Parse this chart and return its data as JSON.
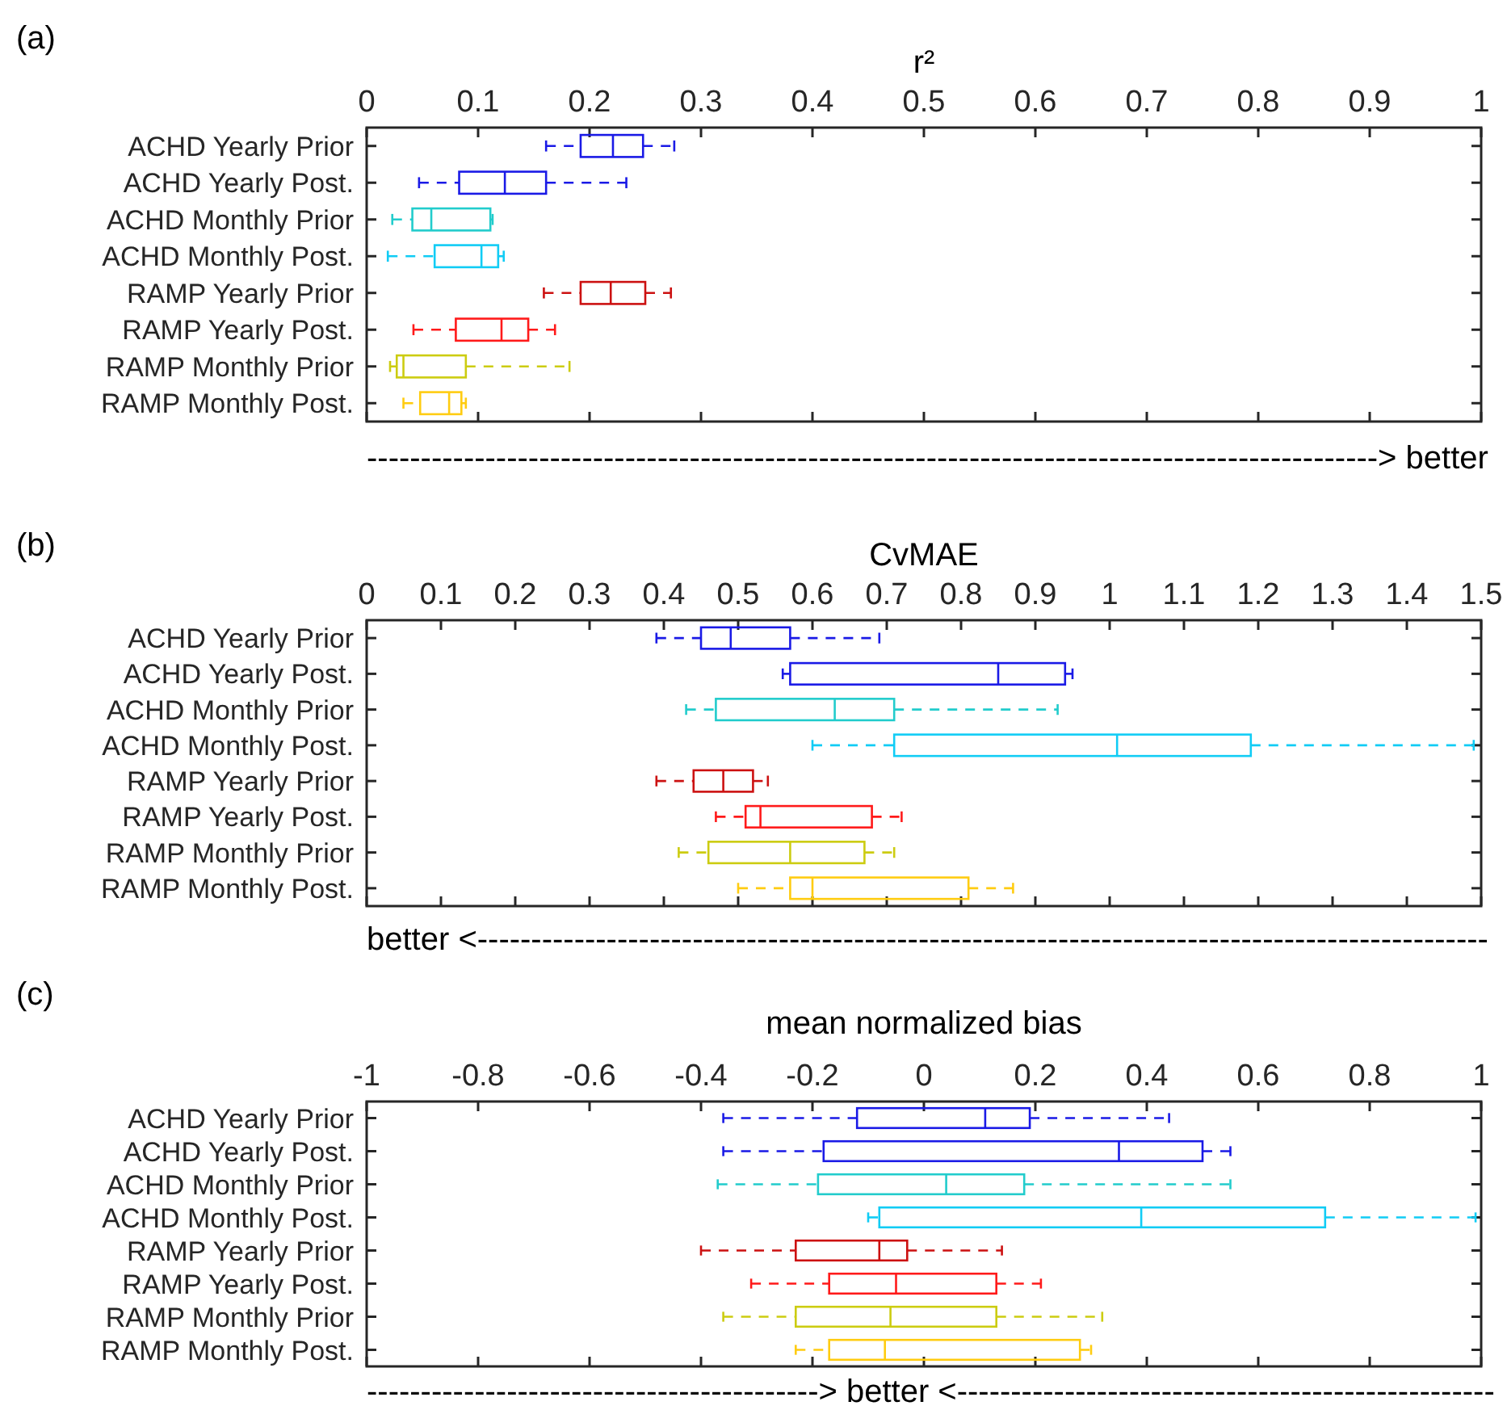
{
  "chart_data": [
    {
      "type": "box",
      "title": "r²",
      "annotations": [
        "(a)",
        "----------------------------------------------------------------------------------------------> better"
      ],
      "categories": [
        "ACHD Yearly Prior",
        "ACHD Yearly Post.",
        "ACHD Monthly Prior",
        "ACHD Monthly Post.",
        "RAMP Yearly Prior",
        "RAMP Yearly Post.",
        "RAMP Monthly Prior",
        "RAMP Monthly Post."
      ],
      "orientation": "horizontal",
      "xlim": [
        0,
        1
      ],
      "xticks": [
        0,
        0.1,
        0.2,
        0.3,
        0.4,
        0.5,
        0.6,
        0.7,
        0.8,
        0.9,
        1
      ],
      "colors": [
        "#1a1ae6",
        "#1a1ae6",
        "#22cccc",
        "#11ccf5",
        "#cc1111",
        "#ff1a1a",
        "#cccc11",
        "#ffcc11"
      ],
      "boxes": [
        {
          "low": 0.161,
          "q1": 0.192,
          "median": 0.221,
          "q3": 0.248,
          "high": 0.276
        },
        {
          "low": 0.047,
          "q1": 0.083,
          "median": 0.124,
          "q3": 0.161,
          "high": 0.233
        },
        {
          "low": 0.023,
          "q1": 0.041,
          "median": 0.058,
          "q3": 0.111,
          "high": 0.113
        },
        {
          "low": 0.019,
          "q1": 0.061,
          "median": 0.103,
          "q3": 0.118,
          "high": 0.123
        },
        {
          "low": 0.159,
          "q1": 0.192,
          "median": 0.219,
          "q3": 0.25,
          "high": 0.273
        },
        {
          "low": 0.042,
          "q1": 0.08,
          "median": 0.121,
          "q3": 0.145,
          "high": 0.169
        },
        {
          "low": 0.021,
          "q1": 0.027,
          "median": 0.033,
          "q3": 0.089,
          "high": 0.182
        },
        {
          "low": 0.033,
          "q1": 0.048,
          "median": 0.074,
          "q3": 0.085,
          "high": 0.089
        }
      ]
    },
    {
      "type": "box",
      "title": "CvMAE",
      "annotations": [
        "(b)",
        "better <----------------------------------------------------------------------------------------------"
      ],
      "categories": [
        "ACHD Yearly Prior",
        "ACHD Yearly Post.",
        "ACHD Monthly Prior",
        "ACHD Monthly Post.",
        "RAMP Yearly Prior",
        "RAMP Yearly Post.",
        "RAMP Monthly Prior",
        "RAMP Monthly Post."
      ],
      "orientation": "horizontal",
      "xlim": [
        0,
        1.5
      ],
      "xticks": [
        0,
        0.1,
        0.2,
        0.3,
        0.4,
        0.5,
        0.6,
        0.7,
        0.8,
        0.9,
        1,
        1.1,
        1.2,
        1.3,
        1.4,
        1.5
      ],
      "colors": [
        "#1a1ae6",
        "#1a1ae6",
        "#22cccc",
        "#11ccf5",
        "#cc1111",
        "#ff1a1a",
        "#cccc11",
        "#ffcc11"
      ],
      "boxes": [
        {
          "low": 0.39,
          "q1": 0.45,
          "median": 0.49,
          "q3": 0.57,
          "high": 0.69
        },
        {
          "low": 0.56,
          "q1": 0.57,
          "median": 0.85,
          "q3": 0.94,
          "high": 0.95
        },
        {
          "low": 0.43,
          "q1": 0.47,
          "median": 0.63,
          "q3": 0.71,
          "high": 0.93
        },
        {
          "low": 0.6,
          "q1": 0.71,
          "median": 1.01,
          "q3": 1.19,
          "high": 1.49
        },
        {
          "low": 0.39,
          "q1": 0.44,
          "median": 0.48,
          "q3": 0.52,
          "high": 0.54
        },
        {
          "low": 0.47,
          "q1": 0.51,
          "median": 0.53,
          "q3": 0.68,
          "high": 0.72
        },
        {
          "low": 0.42,
          "q1": 0.46,
          "median": 0.57,
          "q3": 0.67,
          "high": 0.71
        },
        {
          "low": 0.5,
          "q1": 0.57,
          "median": 0.6,
          "q3": 0.81,
          "high": 0.87
        }
      ]
    },
    {
      "type": "box",
      "title": "mean normalized bias",
      "annotations": [
        "(c)",
        "------------------------------------------> better <--------------------------------------------------"
      ],
      "categories": [
        "ACHD Yearly Prior",
        "ACHD Yearly Post.",
        "ACHD Monthly Prior",
        "ACHD Monthly Post.",
        "RAMP Yearly Prior",
        "RAMP Yearly Post.",
        "RAMP Monthly Prior",
        "RAMP Monthly Post."
      ],
      "orientation": "horizontal",
      "xlim": [
        -1,
        1
      ],
      "xticks": [
        -1,
        -0.8,
        -0.6,
        -0.4,
        -0.2,
        0,
        0.2,
        0.4,
        0.6,
        0.8,
        1
      ],
      "colors": [
        "#1a1ae6",
        "#1a1ae6",
        "#22cccc",
        "#11ccf5",
        "#cc1111",
        "#ff1a1a",
        "#cccc11",
        "#ffcc11"
      ],
      "boxes": [
        {
          "low": -0.36,
          "q1": -0.12,
          "median": 0.11,
          "q3": 0.19,
          "high": 0.44
        },
        {
          "low": -0.36,
          "q1": -0.18,
          "median": 0.35,
          "q3": 0.5,
          "high": 0.55
        },
        {
          "low": -0.37,
          "q1": -0.19,
          "median": 0.04,
          "q3": 0.18,
          "high": 0.55
        },
        {
          "low": -0.1,
          "q1": -0.08,
          "median": 0.39,
          "q3": 0.72,
          "high": 0.99
        },
        {
          "low": -0.4,
          "q1": -0.23,
          "median": -0.08,
          "q3": -0.03,
          "high": 0.14
        },
        {
          "low": -0.31,
          "q1": -0.17,
          "median": -0.05,
          "q3": 0.13,
          "high": 0.21
        },
        {
          "low": -0.36,
          "q1": -0.23,
          "median": -0.06,
          "q3": 0.13,
          "high": 0.32
        },
        {
          "low": -0.23,
          "q1": -0.17,
          "median": -0.07,
          "q3": 0.28,
          "high": 0.3
        }
      ]
    }
  ]
}
